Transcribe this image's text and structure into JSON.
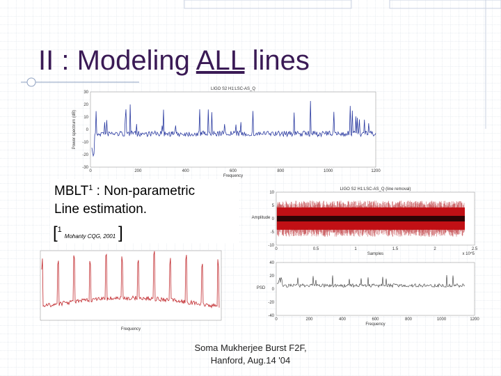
{
  "title": {
    "before": "II : Modeling ",
    "underlined": "ALL",
    "after": " lines"
  },
  "body": {
    "acronym": "MBLT",
    "sup": "1",
    "rest": " : Non-parametric",
    "line2": "Line estimation."
  },
  "reference": {
    "open": "[",
    "sup": "1",
    "citation": "Mohanty CQG, 2001",
    "close": "]"
  },
  "footer": {
    "line1": "Soma Mukherjee Burst F2F,",
    "line2": "Hanford, Aug.14 '04"
  },
  "plots": [
    {
      "title": "LIGO S2 H1:LSC-AS_Q",
      "xlabel": "Frequency",
      "ylabel": "Power spectrum (dB)",
      "yticks": [
        "30",
        "20",
        "10",
        "0",
        "-10",
        "-20",
        "-30"
      ],
      "xticks": [
        "0",
        "200",
        "400",
        "600",
        "800",
        "1000",
        "1200"
      ]
    },
    {
      "title": "LIGO S2 H1:LSC-AS_Q (line removal)",
      "xlabel": "Samples",
      "ylabel": "Amplitude",
      "yticks": [
        "10",
        "5",
        "0",
        "-5",
        "-10"
      ],
      "xticks": [
        "0",
        "0.5",
        "1",
        "1.5",
        "2",
        "2.5"
      ],
      "multiplier": "x 10^5"
    },
    {
      "xlabel": "Frequency",
      "ylabel": "PSD",
      "yticks": [
        "40",
        "20",
        "0",
        "-20",
        "-40"
      ],
      "xticks": [
        "0",
        "200",
        "400",
        "600",
        "800",
        "1000",
        "1200"
      ]
    },
    {
      "xlabel": "Frequency"
    }
  ]
}
